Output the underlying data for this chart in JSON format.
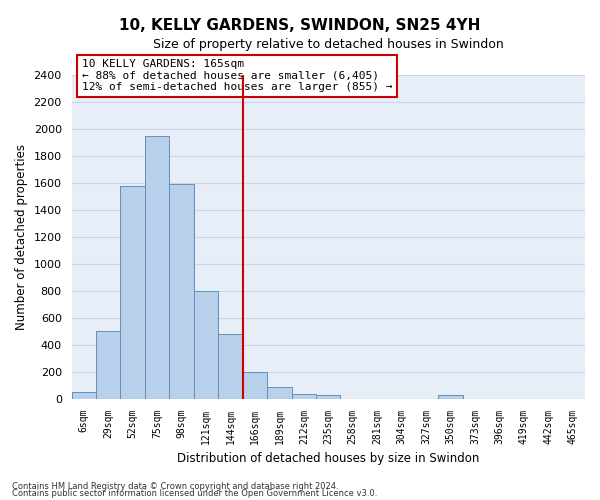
{
  "title": "10, KELLY GARDENS, SWINDON, SN25 4YH",
  "subtitle": "Size of property relative to detached houses in Swindon",
  "xlabel": "Distribution of detached houses by size in Swindon",
  "ylabel": "Number of detached properties",
  "categories": [
    "6sqm",
    "29sqm",
    "52sqm",
    "75sqm",
    "98sqm",
    "121sqm",
    "144sqm",
    "166sqm",
    "189sqm",
    "212sqm",
    "235sqm",
    "258sqm",
    "281sqm",
    "304sqm",
    "327sqm",
    "350sqm",
    "373sqm",
    "396sqm",
    "419sqm",
    "442sqm",
    "465sqm"
  ],
  "bar_heights": [
    50,
    500,
    1580,
    1950,
    1590,
    800,
    480,
    195,
    90,
    35,
    28,
    0,
    0,
    0,
    0,
    25,
    0,
    0,
    0,
    0,
    0
  ],
  "bar_color": "#b8d0ea",
  "bar_edge_color": "#6090c0",
  "vline_x_index": 7,
  "vline_color": "#cc0000",
  "annotation_text": "10 KELLY GARDENS: 165sqm\n← 88% of detached houses are smaller (6,405)\n12% of semi-detached houses are larger (855) →",
  "annotation_box_color": "#ffffff",
  "annotation_box_edge": "#cc0000",
  "ylim": [
    0,
    2400
  ],
  "yticks": [
    0,
    200,
    400,
    600,
    800,
    1000,
    1200,
    1400,
    1600,
    1800,
    2000,
    2200,
    2400
  ],
  "grid_color": "#c8d4e8",
  "bg_color": "#e8eef7",
  "footer1": "Contains HM Land Registry data © Crown copyright and database right 2024.",
  "footer2": "Contains public sector information licensed under the Open Government Licence v3.0."
}
